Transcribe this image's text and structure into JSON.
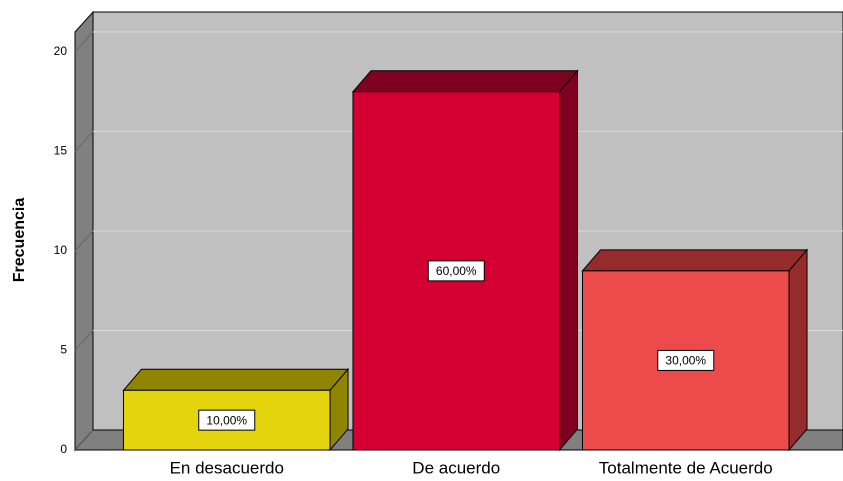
{
  "chart_data": {
    "type": "bar3d",
    "y_label": "Frecuencia",
    "categories": [
      "En desacuerdo",
      "De acuerdo",
      "Totalmente de Acuerdo"
    ],
    "values": [
      3,
      18,
      9
    ],
    "data_labels": [
      "10,00%",
      "60,00%",
      "30,00%"
    ],
    "colors": [
      "#e3d40e",
      "#d40032",
      "#ed4b4b"
    ],
    "top_colors": [
      "#8f8500",
      "#7f0020",
      "#962b2b"
    ],
    "ylim": [
      0,
      21
    ],
    "yticks": [
      0,
      5,
      10,
      15,
      20
    ],
    "grid": true
  }
}
